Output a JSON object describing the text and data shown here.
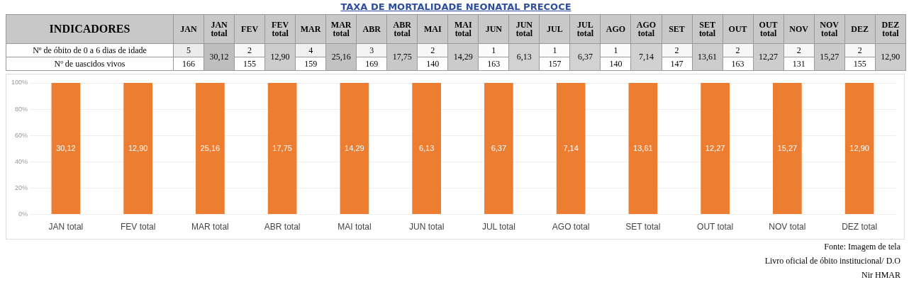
{
  "chart_data": [
    {
      "type": "heatmap",
      "title": "TAXA DE MORTALIDADE NEONATAL PRECOCE",
      "ylabel": "INDICADORES",
      "categories": [
        "JAN",
        "JAN total",
        "FEV",
        "FEV total",
        "MAR",
        "MAR total",
        "ABR",
        "ABR total",
        "MAI",
        "MAI total",
        "JUN",
        "JUN total",
        "JUL",
        "JUL total",
        "AGO",
        "AGO total",
        "SET",
        "SET total",
        "OUT",
        "OUT total",
        "NOV",
        "NOV total",
        "DEZ",
        "DEZ total"
      ],
      "y_categories": [
        "Nº de óbito de 0 a 6 dias de idade",
        "Nº de uascidos vivos"
      ],
      "cells": [
        [
          5,
          30.12,
          2,
          12.9,
          4,
          25.16,
          3,
          17.75,
          2,
          14.29,
          1,
          6.13,
          1,
          6.37,
          1,
          7.14,
          2,
          13.61,
          2,
          12.27,
          2,
          15.27,
          2,
          12.9
        ],
        [
          166,
          null,
          155,
          null,
          159,
          null,
          169,
          null,
          140,
          null,
          163,
          null,
          157,
          null,
          140,
          null,
          147,
          null,
          163,
          null,
          131,
          null,
          155,
          null
        ]
      ],
      "cell_labels": [
        [
          "5",
          "30,12",
          "2",
          "12,90",
          "4",
          "25,16",
          "3",
          "17,75",
          "2",
          "14,29",
          "1",
          "6,13",
          "1",
          "6,37",
          "1",
          "7,14",
          "2",
          "13,61",
          "2",
          "12,27",
          "2",
          "15,27",
          "2",
          "12,90"
        ],
        [
          "166",
          null,
          "155",
          null,
          "159",
          null,
          "169",
          null,
          "140",
          null,
          "163",
          null,
          "157",
          null,
          "140",
          null,
          "147",
          null,
          "163",
          null,
          "131",
          null,
          "155",
          null
        ]
      ]
    },
    {
      "type": "bar",
      "categories": [
        "JAN total",
        "FEV total",
        "MAR total",
        "ABR total",
        "MAI total",
        "JUN total",
        "JUL total",
        "AGO total",
        "SET total",
        "OUT total",
        "NOV total",
        "DEZ total"
      ],
      "values": [
        100,
        100,
        100,
        100,
        100,
        100,
        100,
        100,
        100,
        100,
        100,
        100
      ],
      "color": "#ed7d31",
      "ylim": [
        0,
        100
      ],
      "yticks": [
        {
          "value": 0,
          "label": "0%"
        },
        {
          "value": 20,
          "label": "20%"
        },
        {
          "value": 40,
          "label": "40%"
        },
        {
          "value": 60,
          "label": "60%"
        },
        {
          "value": 80,
          "label": "80%"
        },
        {
          "value": 100,
          "label": "100%"
        }
      ],
      "grid": "y",
      "legend": false,
      "annotations": [
        "30,12",
        "12,90",
        "25,16",
        "17,75",
        "14,29",
        "6,13",
        "6,37",
        "7,14",
        "13,61",
        "12,27",
        "15,27",
        "12,90",
        "Fonte: Imagem de tela",
        "Livro oficial de óbito institucional/ D.O",
        "Nir HMAR"
      ]
    }
  ]
}
